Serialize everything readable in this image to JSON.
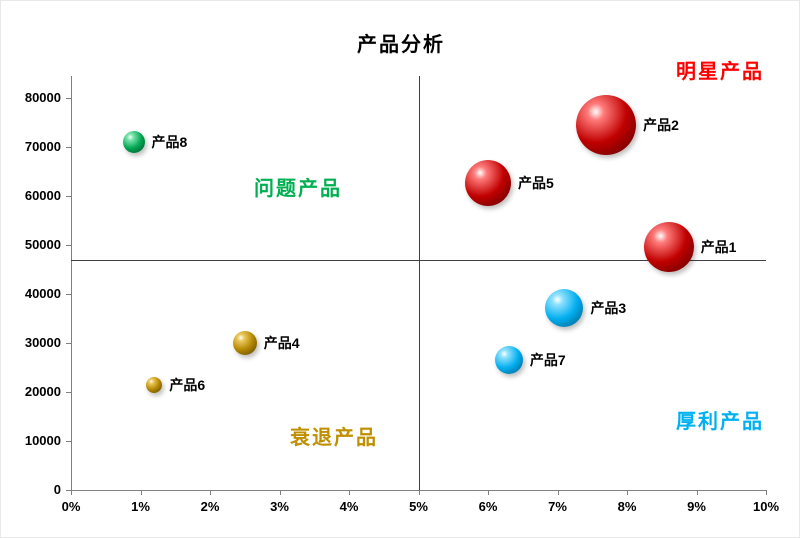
{
  "title": "产品分析",
  "chart_data": {
    "type": "bubble",
    "title": "产品分析",
    "xlabel": "",
    "ylabel": "",
    "x_range": [
      0,
      10
    ],
    "y_range": [
      0,
      84500
    ],
    "x_ticks": [
      "0%",
      "1%",
      "2%",
      "3%",
      "4%",
      "5%",
      "6%",
      "7%",
      "8%",
      "9%",
      "10%"
    ],
    "y_ticks": [
      0,
      10000,
      20000,
      30000,
      40000,
      50000,
      60000,
      70000,
      80000
    ],
    "grid": false,
    "legend": "none",
    "quadrant_lines": {
      "x": 5,
      "y": 47000
    },
    "quadrant_labels": [
      {
        "text": "明星产品",
        "color": "#ff0000",
        "position": "top-right"
      },
      {
        "text": "问题产品",
        "color": "#00b050",
        "position": "top-left"
      },
      {
        "text": "衰退产品",
        "color": "#bf8f00",
        "position": "bottom-left"
      },
      {
        "text": "厚利产品",
        "color": "#00b0f0",
        "position": "bottom-right"
      }
    ],
    "points": [
      {
        "label": "产品1",
        "x": 8.6,
        "y": 49500,
        "r": 25,
        "color": "red"
      },
      {
        "label": "产品2",
        "x": 7.7,
        "y": 74600,
        "r": 30,
        "color": "red"
      },
      {
        "label": "产品3",
        "x": 7.1,
        "y": 37200,
        "r": 19,
        "color": "cyan"
      },
      {
        "label": "产品4",
        "x": 2.5,
        "y": 30000,
        "r": 12,
        "color": "gold"
      },
      {
        "label": "产品5",
        "x": 6.0,
        "y": 62700,
        "r": 23,
        "color": "red"
      },
      {
        "label": "产品6",
        "x": 1.2,
        "y": 21400,
        "r": 8,
        "color": "gold"
      },
      {
        "label": "产品7",
        "x": 6.3,
        "y": 26500,
        "r": 14,
        "color": "cyan"
      },
      {
        "label": "产品8",
        "x": 0.9,
        "y": 71000,
        "r": 11,
        "color": "green"
      }
    ],
    "colors": {
      "red": {
        "light": "#ff7a7a",
        "base": "#c00000",
        "dark": "#5e0000"
      },
      "green": {
        "light": "#7ce6ae",
        "base": "#00a551",
        "dark": "#00522a"
      },
      "cyan": {
        "light": "#8fe1ff",
        "base": "#00aeef",
        "dark": "#005d85"
      },
      "gold": {
        "light": "#ecc95e",
        "base": "#b38600",
        "dark": "#5c4500"
      }
    }
  }
}
